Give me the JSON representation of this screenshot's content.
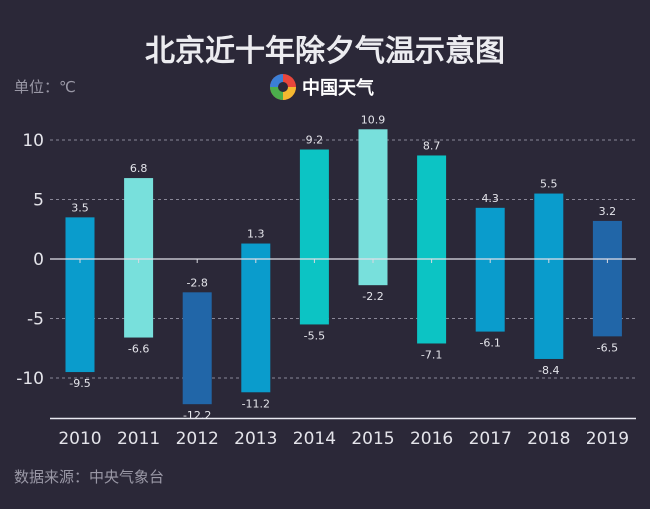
{
  "title": "北京近十年除夕气温示意图",
  "unit_label": "单位：℃",
  "brand": {
    "name": "中国天气",
    "icon": "pinwheel-logo-icon"
  },
  "source": "数据来源：中央气象台",
  "chart_data": {
    "type": "bar",
    "subtype": "floating-range",
    "title": "北京近十年除夕气温示意图",
    "ylabel": "单位：℃",
    "categories": [
      "2010",
      "2011",
      "2012",
      "2013",
      "2014",
      "2015",
      "2016",
      "2017",
      "2018",
      "2019"
    ],
    "series": [
      {
        "values_high": [
          3.5,
          6.8,
          -2.8,
          1.3,
          9.2,
          10.9,
          8.7,
          4.3,
          5.5,
          3.2
        ],
        "values_low": [
          -9.5,
          -6.6,
          -12.2,
          -11.2,
          -5.5,
          -2.2,
          -7.1,
          -6.1,
          -8.4,
          -6.5
        ]
      }
    ],
    "bar_colors": [
      "#0a9ccc",
      "#78e0dc",
      "#2166a8",
      "#0a9ccc",
      "#0cc4c4",
      "#78e0dc",
      "#0cc4c4",
      "#0a9ccc",
      "#0a9ccc",
      "#2166a8"
    ],
    "high_labels": [
      "3.5",
      "6.8",
      "-2.8",
      "1.3",
      "9.2",
      "10.9",
      "8.7",
      "4.3",
      "5.5",
      "3.2"
    ],
    "low_labels": [
      "-9.5",
      "-6.6",
      "-12.2",
      "-11.2",
      "-5.5",
      "-2.2",
      "-7.1",
      "-6.1",
      "-8.4",
      "-6.5"
    ],
    "yticks": [
      10,
      5,
      0,
      -5,
      -10
    ],
    "ytick_labels": [
      "10",
      "5",
      "0",
      "-5",
      "-10"
    ],
    "ylim": [
      -13.4,
      12
    ],
    "grid": "dashed-horizontal",
    "legend": "none"
  }
}
